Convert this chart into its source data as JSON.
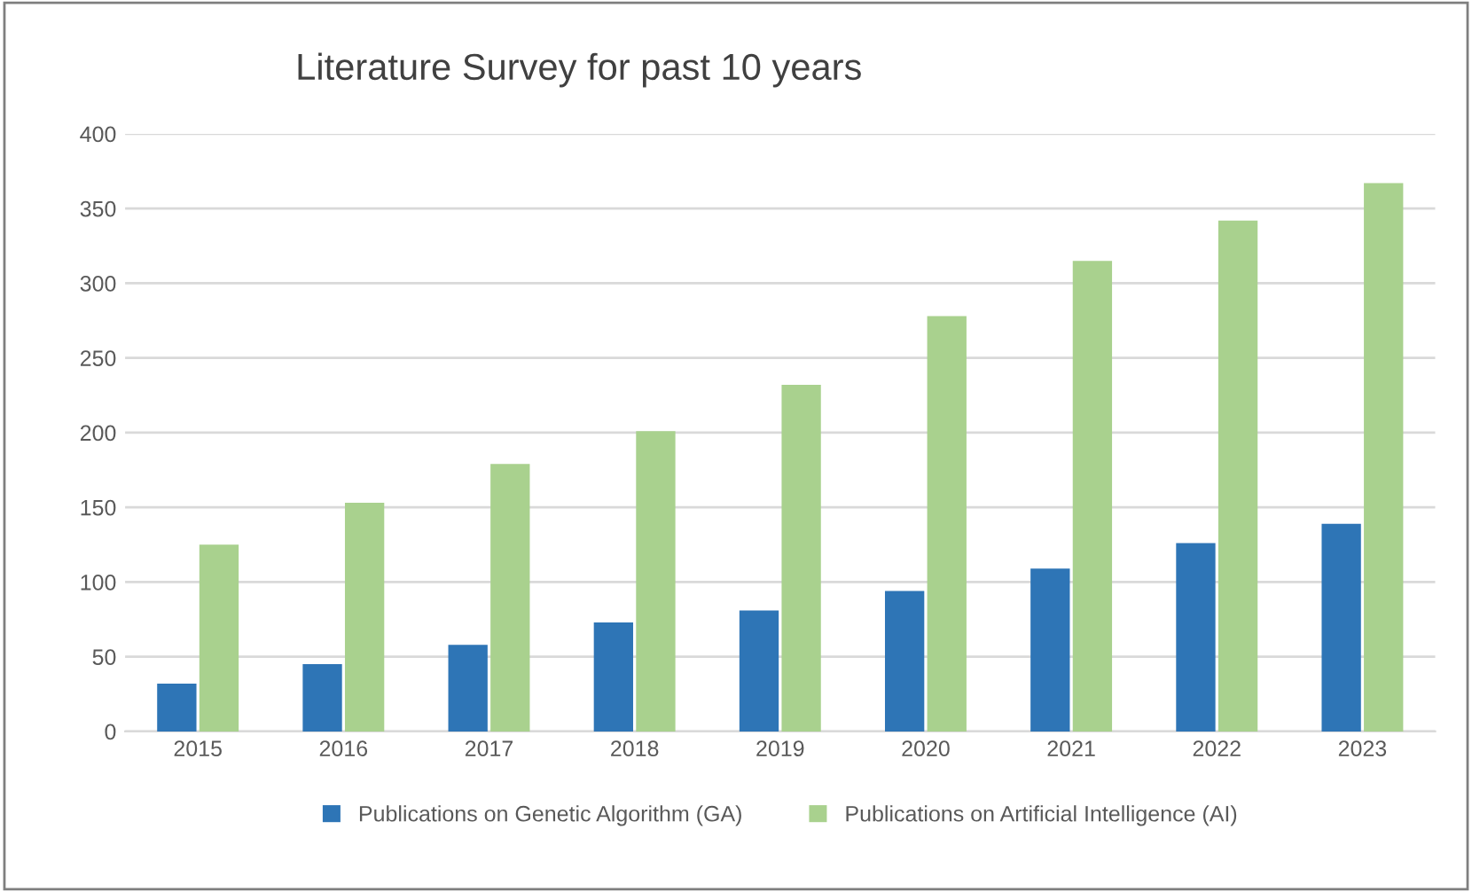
{
  "chart_data": {
    "type": "bar",
    "title": "Literature Survey for past 10 years",
    "categories": [
      "2015",
      "2016",
      "2017",
      "2018",
      "2019",
      "2020",
      "2021",
      "2022",
      "2023"
    ],
    "series": [
      {
        "name": "Publications on Genetic Algorithm (GA)",
        "color": "#2e75b6",
        "values": [
          32,
          45,
          58,
          73,
          81,
          94,
          109,
          126,
          139
        ]
      },
      {
        "name": "Publications on Artificial Intelligence (AI)",
        "color": "#a9d18e",
        "values": [
          125,
          153,
          179,
          201,
          232,
          278,
          315,
          342,
          367
        ]
      }
    ],
    "ylim": [
      0,
      400
    ],
    "yticks": [
      0,
      50,
      100,
      150,
      200,
      250,
      300,
      350,
      400
    ],
    "grid": "y",
    "legend": "bottom"
  }
}
